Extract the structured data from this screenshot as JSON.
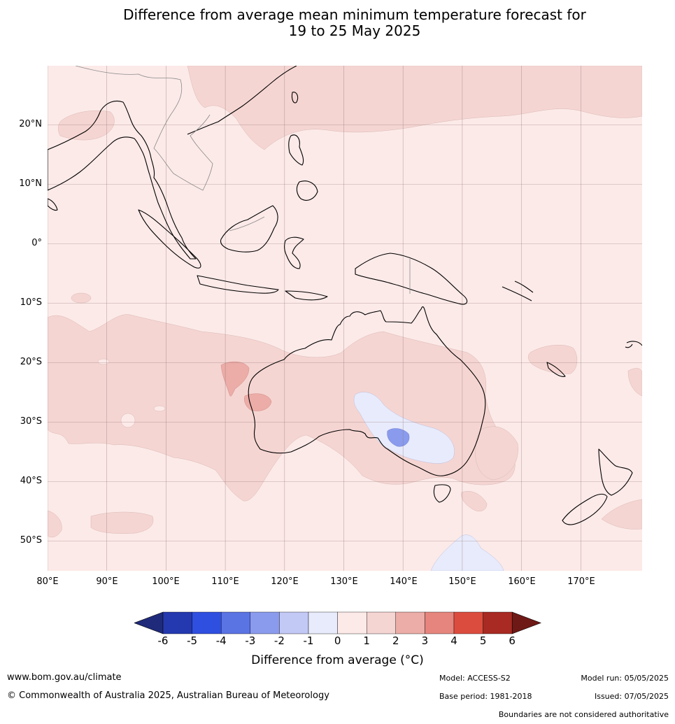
{
  "title": {
    "line1": "Difference from average mean minimum temperature forecast for",
    "line2": "19 to 25 May 2025"
  },
  "map": {
    "lat_labels": [
      "20°N",
      "10°N",
      "0°",
      "10°S",
      "20°S",
      "30°S",
      "40°S",
      "50°S"
    ],
    "lon_labels": [
      "80°E",
      "90°E",
      "100°E",
      "110°E",
      "120°E",
      "130°E",
      "140°E",
      "150°E",
      "160°E",
      "170°E"
    ]
  },
  "colorbar": {
    "ticks": [
      "-6",
      "-5",
      "-4",
      "-3",
      "-2",
      "-1",
      "0",
      "1",
      "2",
      "3",
      "4",
      "5",
      "6"
    ],
    "colors": [
      "#1f2a7a",
      "#2438b0",
      "#2f4fe0",
      "#5a74e4",
      "#8a9bee",
      "#c2c9f5",
      "#e8ebfb",
      "#fceae8",
      "#f5d5d2",
      "#ecaca7",
      "#e6857d",
      "#dc4c3e",
      "#a82a22",
      "#6f1916"
    ],
    "label": "Difference from average (°C)"
  },
  "footer": {
    "website": "www.bom.gov.au/climate",
    "copyright": "© Commonwealth of Australia 2025, Australian Bureau of Meteorology",
    "model": "Model: ACCESS-S2",
    "base_period": "Base period: 1981-2018",
    "model_run": "Model run: 05/05/2025",
    "issued": "Issued: 07/05/2025",
    "disclaimer": "Boundaries are not considered authoritative"
  }
}
